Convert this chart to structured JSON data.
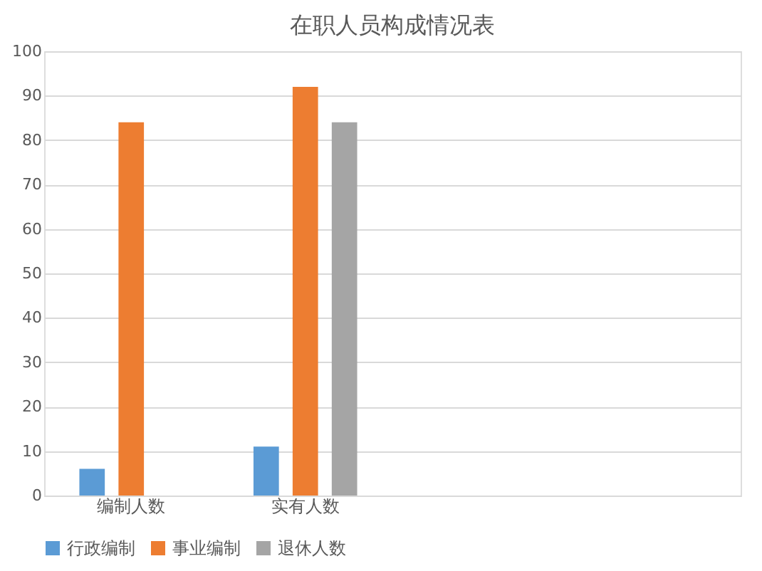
{
  "chart_data": {
    "type": "bar",
    "title": "在职人员构成情况表",
    "categories": [
      "编制人数",
      "实有人数",
      null,
      null
    ],
    "series": [
      {
        "name": "行政编制",
        "color": "#5b9bd5",
        "values": [
          6,
          11,
          null,
          null
        ]
      },
      {
        "name": "事业编制",
        "color": "#ed7d31",
        "values": [
          84,
          92,
          null,
          null
        ]
      },
      {
        "name": "退休人数",
        "color": "#a5a5a5",
        "values": [
          null,
          84,
          null,
          null
        ]
      }
    ],
    "ylim": [
      0,
      100
    ],
    "yticks": [
      0,
      10,
      20,
      30,
      40,
      50,
      60,
      70,
      80,
      90,
      100
    ],
    "grid": "y",
    "legend": "bottom"
  }
}
